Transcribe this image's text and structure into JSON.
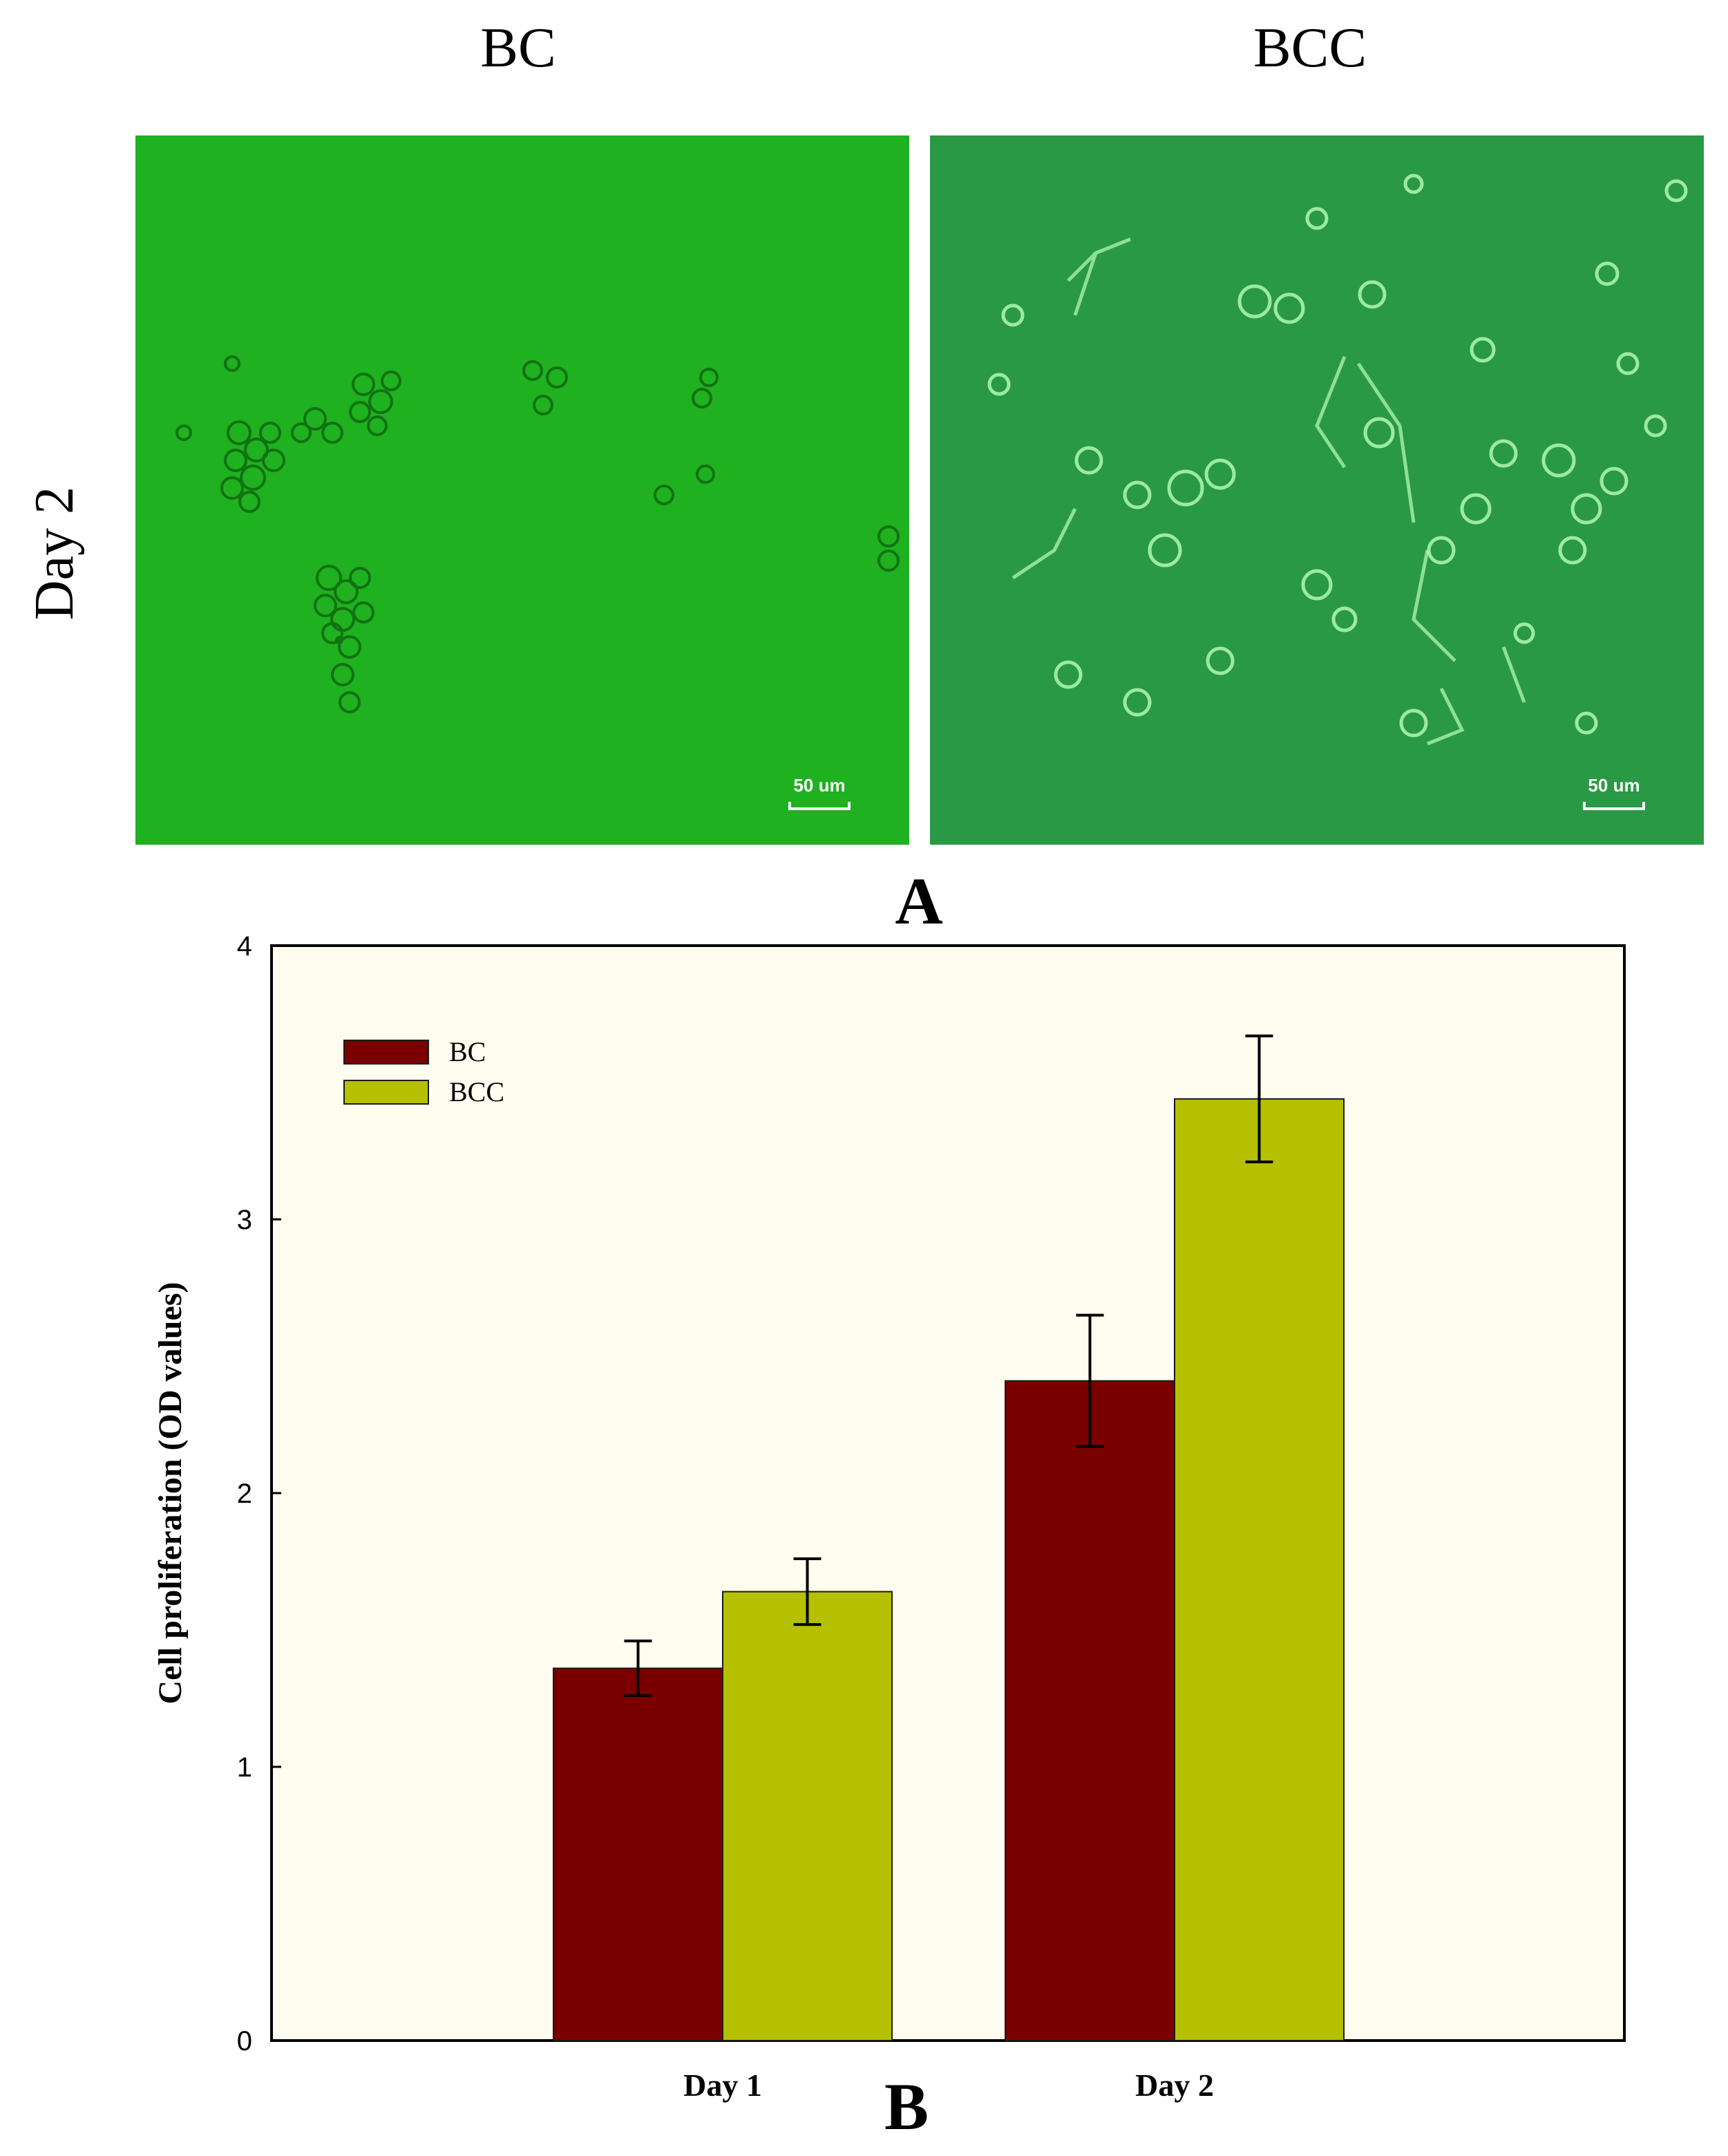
{
  "figure": {
    "panel_a": {
      "columns": [
        "BC",
        "BCC"
      ],
      "row_label": "Day 2",
      "scale_bar_label": "50 um",
      "letter": "A"
    },
    "panel_b": {
      "letter": "B"
    }
  },
  "colors": {
    "bc_series": "#7a0000",
    "bcc_series": "#b5c000",
    "plot_background": "#fefdf0",
    "bc_micrograph": "#1fb11f",
    "bcc_micrograph": "#2a9945"
  },
  "chart_data": {
    "type": "bar",
    "title": "",
    "xlabel": "",
    "ylabel": "Cell proliferation (OD values)",
    "categories": [
      "Day 1",
      "Day 2"
    ],
    "series": [
      {
        "name": "BC",
        "values": [
          1.36,
          2.41
        ],
        "errors": [
          0.1,
          0.24
        ],
        "color": "#7a0000"
      },
      {
        "name": "BCC",
        "values": [
          1.64,
          3.44
        ],
        "errors": [
          0.12,
          0.23
        ],
        "color": "#b5c000"
      }
    ],
    "ylim": [
      0,
      4
    ],
    "yticks": [
      "0",
      "1",
      "2",
      "3",
      "4"
    ],
    "grid": false,
    "legend_position": "top-left"
  }
}
